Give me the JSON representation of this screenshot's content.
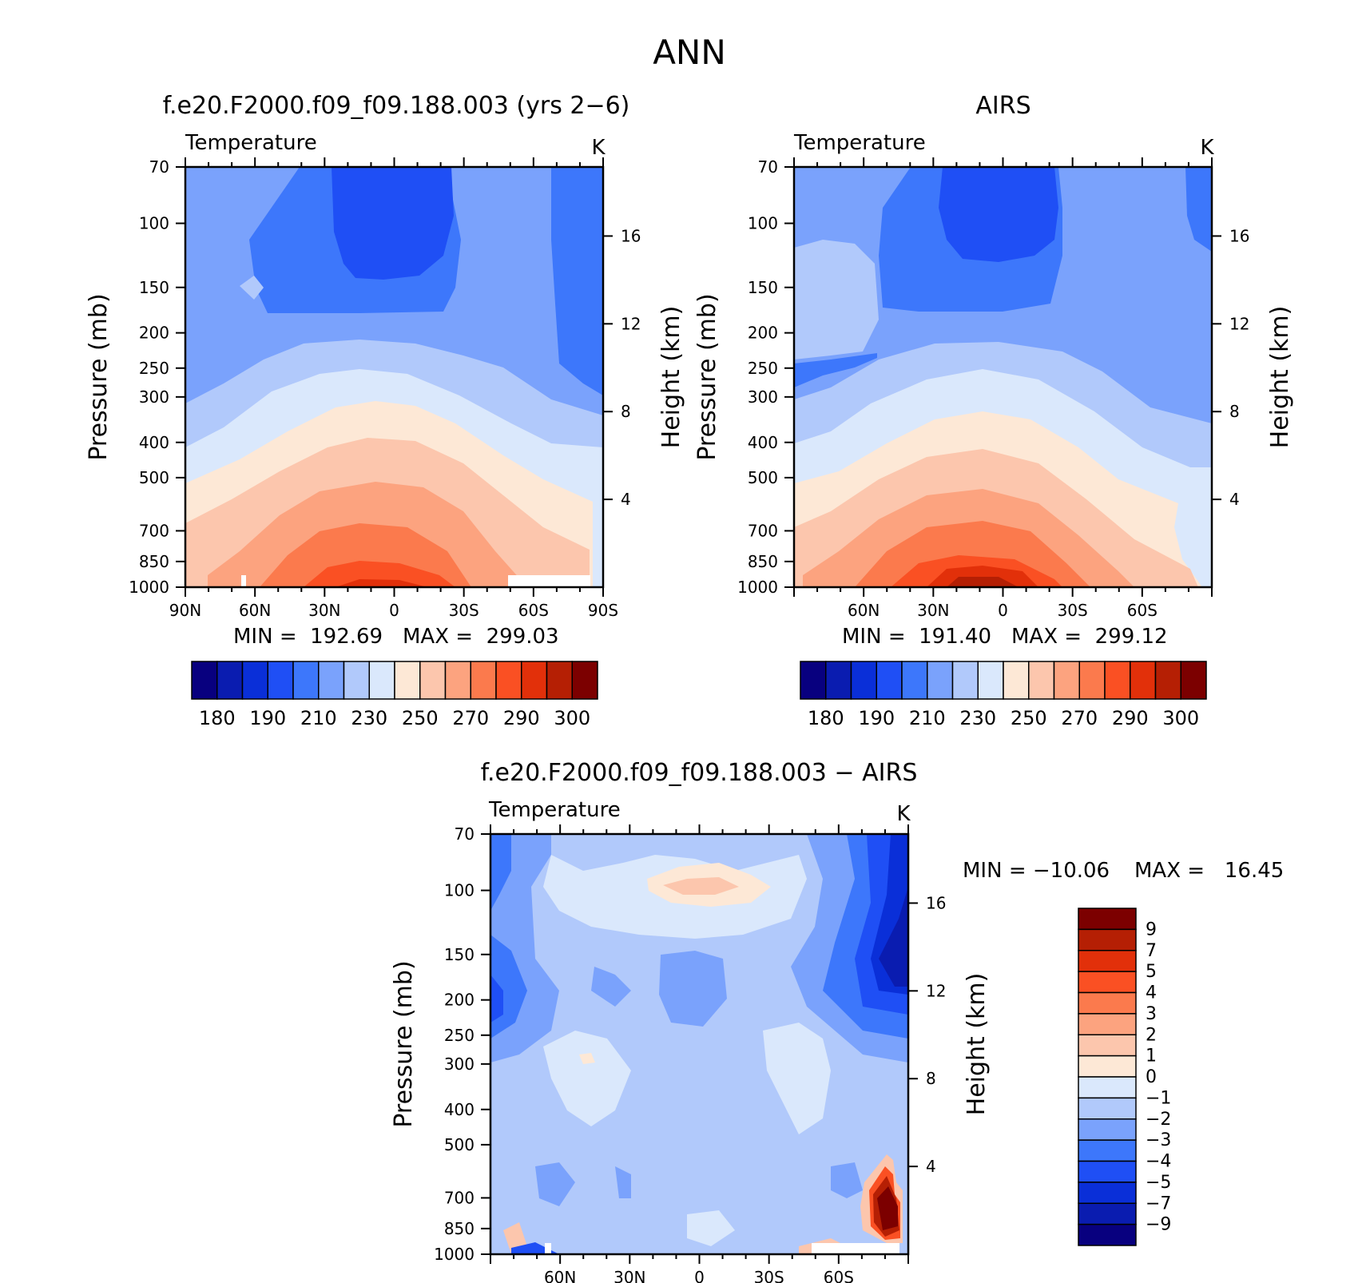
{
  "page": {
    "title": "ANN"
  },
  "colors": {
    "temperature_scale": [
      "#08007f",
      "#0a1cb0",
      "#0a2fd8",
      "#1f4ff5",
      "#3d77fb",
      "#7aa2fc",
      "#b1c9fb",
      "#dae8fc",
      "#fde8d6",
      "#fcc6ad",
      "#fca37f",
      "#fb7a4d",
      "#fa5023",
      "#e2300a",
      "#b51f04",
      "#7c0000"
    ],
    "difference_scale": [
      "#08007f",
      "#0a1cb0",
      "#0a2fd8",
      "#1f4ff5",
      "#3d77fb",
      "#7aa2fc",
      "#b1c9fb",
      "#dae8fc",
      "#fde8d6",
      "#fcc6ad",
      "#fca37f",
      "#fb7a4d",
      "#fa5023",
      "#e2300a",
      "#b51f04",
      "#7c0000"
    ]
  },
  "chart_data": [
    {
      "type": "heatmap",
      "title": "f.e20.F2000.f09_f09.188.003 (yrs 2−6)",
      "variable": "Temperature",
      "units": "K",
      "ylabel": "Pressure (mb)",
      "y2label": "Height (km)",
      "x_ticks": [
        "90N",
        "60N",
        "30N",
        "0",
        "30S",
        "60S",
        "90S"
      ],
      "y_ticks": [
        "70",
        "100",
        "150",
        "200",
        "250",
        "300",
        "400",
        "500",
        "700",
        "850",
        "1000"
      ],
      "y2_ticks": [
        "16",
        "12",
        "8",
        "4"
      ],
      "min_label": "MIN =  192.69",
      "max_label": "MAX =  299.03",
      "min": 192.69,
      "max": 299.03,
      "colorbar_labels": [
        "180",
        "190",
        "210",
        "230",
        "250",
        "270",
        "290",
        "300"
      ]
    },
    {
      "type": "heatmap",
      "title": "AIRS",
      "variable": "Temperature",
      "units": "K",
      "ylabel": "Pressure (mb)",
      "y2label": "Height (km)",
      "x_ticks": [
        "60N",
        "30N",
        "0",
        "30S",
        "60S"
      ],
      "y_ticks": [
        "70",
        "100",
        "150",
        "200",
        "250",
        "300",
        "400",
        "500",
        "700",
        "850",
        "1000"
      ],
      "y2_ticks": [
        "16",
        "12",
        "8",
        "4"
      ],
      "min_label": "MIN =  191.40",
      "max_label": "MAX =  299.12",
      "min": 191.4,
      "max": 299.12,
      "colorbar_labels": [
        "180",
        "190",
        "210",
        "230",
        "250",
        "270",
        "290",
        "300"
      ]
    },
    {
      "type": "heatmap",
      "title": "f.e20.F2000.f09_f09.188.003 − AIRS",
      "variable": "Temperature",
      "units": "K",
      "ylabel": "Pressure (mb)",
      "y2label": "Height (km)",
      "x_ticks": [
        "60N",
        "30N",
        "0",
        "30S",
        "60S"
      ],
      "y_ticks": [
        "70",
        "100",
        "150",
        "200",
        "250",
        "300",
        "400",
        "500",
        "700",
        "850",
        "1000"
      ],
      "y2_ticks": [
        "16",
        "12",
        "8",
        "4"
      ],
      "min_label": "MIN = −10.06",
      "max_label": "MAX =   16.45",
      "min": -10.06,
      "max": 16.45,
      "colorbar_labels": [
        "9",
        "7",
        "5",
        "4",
        "3",
        "2",
        "1",
        "0",
        "−1",
        "−2",
        "−3",
        "−4",
        "−5",
        "−7",
        "−9"
      ]
    }
  ]
}
